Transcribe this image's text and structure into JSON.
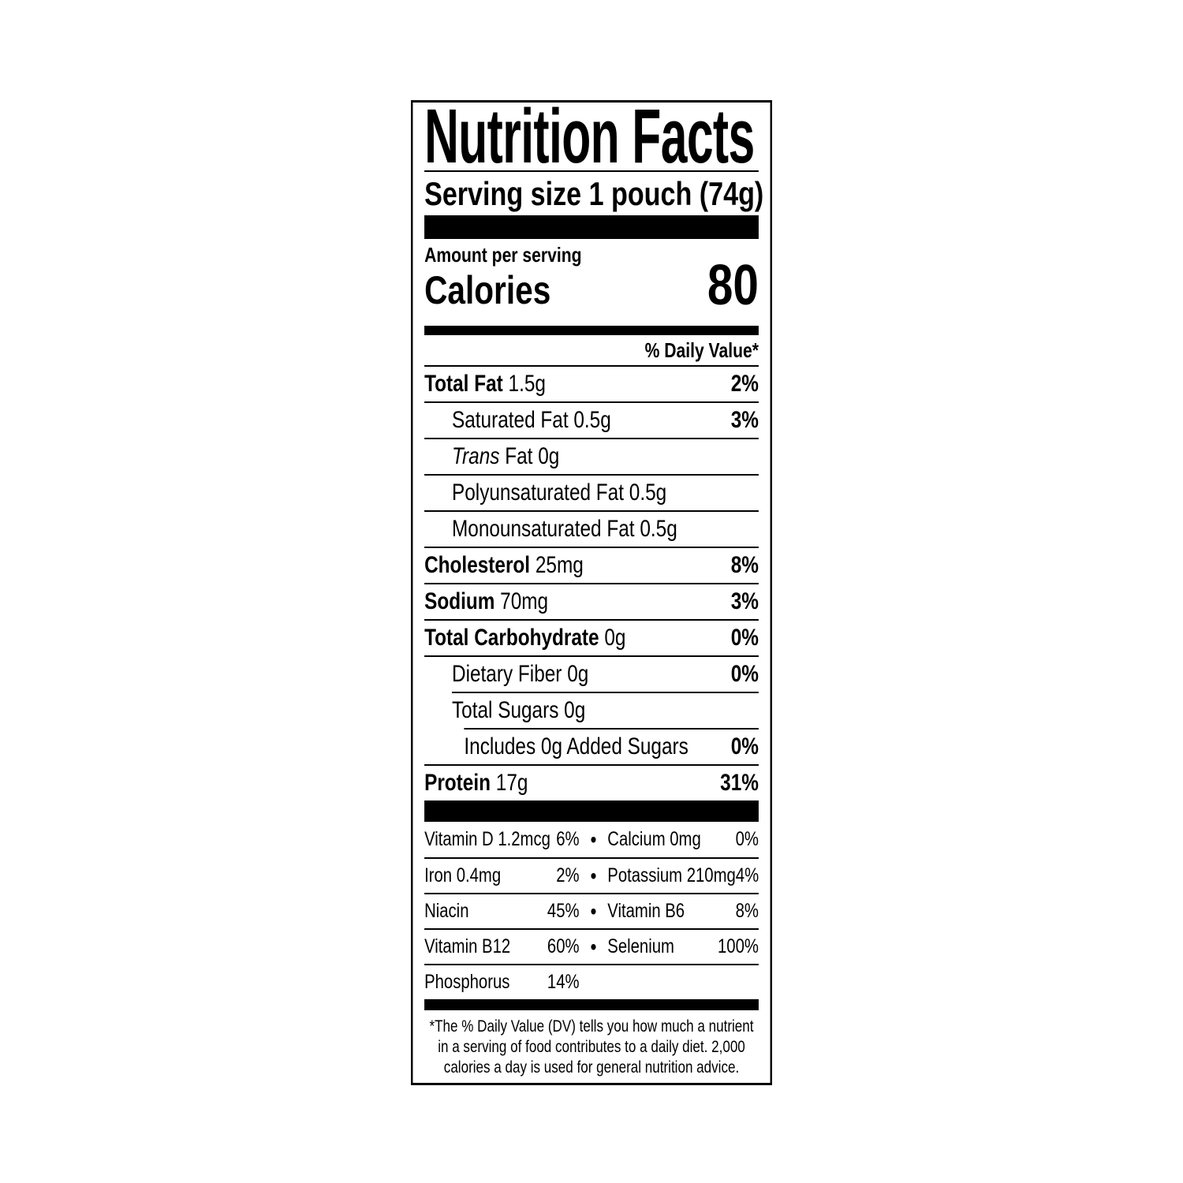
{
  "colors": {
    "ink": "#000000",
    "background": "#ffffff"
  },
  "label": {
    "title": "Nutrition Facts",
    "serving_size": "Serving size 1 pouch (74g)",
    "amount_per_serving": "Amount per serving",
    "calories_label": "Calories",
    "calories_value": "80",
    "daily_value_header": "% Daily Value*",
    "bullet_icon": "•",
    "nutrients": [
      {
        "name": "Total Fat",
        "amount": "1.5g",
        "pct": "2%"
      },
      {
        "name": "Saturated Fat",
        "amount": "0.5g",
        "pct": "3%"
      },
      {
        "name": "Trans",
        "amount": "Fat 0g",
        "pct": ""
      },
      {
        "name": "Polyunsaturated Fat",
        "amount": "0.5g",
        "pct": ""
      },
      {
        "name": "Monounsaturated Fat",
        "amount": "0.5g",
        "pct": ""
      },
      {
        "name": "Cholesterol",
        "amount": "25mg",
        "pct": "8%"
      },
      {
        "name": "Sodium",
        "amount": "70mg",
        "pct": "3%"
      },
      {
        "name": "Total Carbohydrate",
        "amount": "0g",
        "pct": "0%"
      },
      {
        "name": "Dietary Fiber",
        "amount": "0g",
        "pct": "0%"
      },
      {
        "name": "Total Sugars",
        "amount": "0g",
        "pct": ""
      },
      {
        "name": "Includes 0g Added Sugars",
        "amount": "",
        "pct": "0%"
      },
      {
        "name": "Protein",
        "amount": "17g",
        "pct": "31%"
      }
    ],
    "vitamins": [
      {
        "l_name": "Vitamin D 1.2mcg",
        "l_pct": "6%",
        "r_name": "Calcium 0mg",
        "r_pct": "0%"
      },
      {
        "l_name": "Iron 0.4mg",
        "l_pct": "2%",
        "r_name": "Potassium 210mg",
        "r_pct": "4%"
      },
      {
        "l_name": "Niacin",
        "l_pct": "45%",
        "r_name": "Vitamin B6",
        "r_pct": "8%"
      },
      {
        "l_name": "Vitamin B12",
        "l_pct": "60%",
        "r_name": "Selenium",
        "r_pct": "100%"
      },
      {
        "l_name": "Phosphorus",
        "l_pct": "14%",
        "r_name": "",
        "r_pct": ""
      }
    ],
    "footnote_lines": [
      "*The % Daily Value (DV) tells you how much a nutrient",
      "in a serving of food contributes to a daily diet. 2,000",
      "calories a day is used for general nutrition advice."
    ]
  }
}
